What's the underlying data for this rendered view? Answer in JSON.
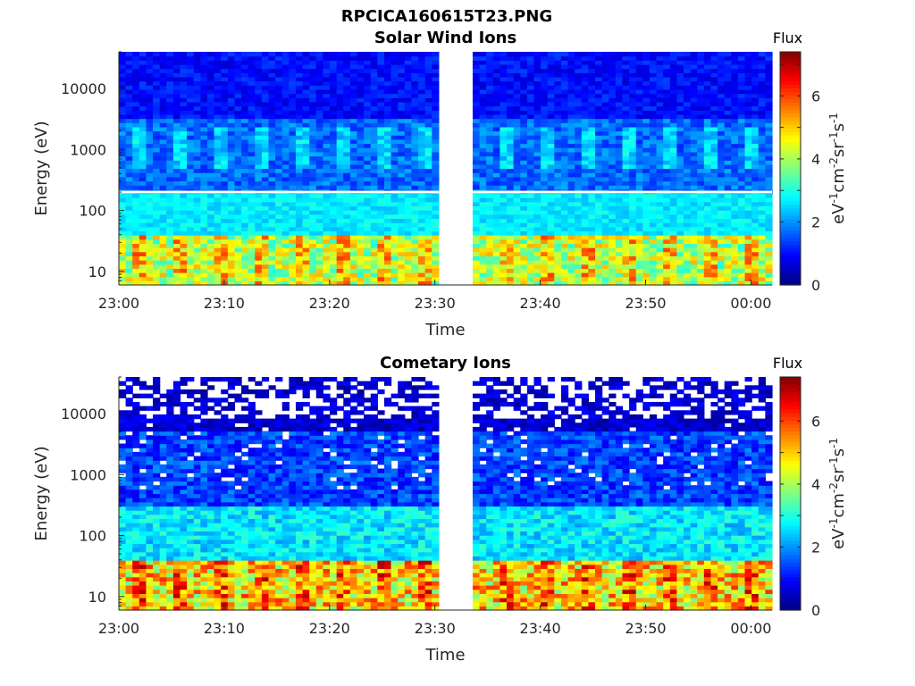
{
  "figure": {
    "title": "RPCICA160615T23.PNG"
  },
  "chart_data": [
    {
      "type": "heatmap",
      "title": "Solar Wind Ions",
      "xlabel": "Time",
      "ylabel": "Energy (eV)",
      "x_ticks": [
        "23:00",
        "23:10",
        "23:20",
        "23:30",
        "23:40",
        "23:50",
        "00:00"
      ],
      "x_range_minutes": [
        0,
        62
      ],
      "data_gap_minutes": [
        30.5,
        33.5
      ],
      "y_scale": "log",
      "y_ticks": [
        "10",
        "100",
        "1000",
        "10000"
      ],
      "y_range": [
        6,
        40000
      ],
      "colorbar": {
        "title": "Flux",
        "label": "eV-1cm-2sr-1s-1",
        "ticks": [
          "0",
          "2",
          "4",
          "6"
        ],
        "range": [
          0,
          7.4
        ]
      },
      "colormap": "jet",
      "masked_energy_row": 200,
      "bands": [
        {
          "energy_range": [
            6,
            40
          ],
          "flux_range": [
            3.0,
            5.2
          ]
        },
        {
          "energy_range": [
            40,
            200
          ],
          "flux_range": [
            2.3,
            3.0
          ]
        },
        {
          "energy_range": [
            200,
            3000
          ],
          "flux_range": [
            1.2,
            2.2
          ]
        },
        {
          "energy_range": [
            3000,
            40000
          ],
          "flux_range": [
            0.6,
            1.4
          ]
        }
      ],
      "grid": false
    },
    {
      "type": "heatmap",
      "title": "Cometary Ions",
      "xlabel": "Time",
      "ylabel": "Energy (eV)",
      "x_ticks": [
        "23:00",
        "23:10",
        "23:20",
        "23:30",
        "23:40",
        "23:50",
        "00:00"
      ],
      "x_range_minutes": [
        0,
        62
      ],
      "data_gap_minutes": [
        30.5,
        33.5
      ],
      "y_scale": "log",
      "y_ticks": [
        "10",
        "100",
        "1000",
        "10000"
      ],
      "y_range": [
        6,
        40000
      ],
      "colorbar": {
        "title": "Flux",
        "label": "eV-1cm-2sr-1s-1",
        "ticks": [
          "0",
          "2",
          "4",
          "6"
        ],
        "range": [
          0,
          7.4
        ]
      },
      "colormap": "jet",
      "bands": [
        {
          "energy_range": [
            6,
            40
          ],
          "flux_range": [
            3.5,
            6.2
          ]
        },
        {
          "energy_range": [
            40,
            300
          ],
          "flux_range": [
            2.0,
            3.2
          ]
        },
        {
          "energy_range": [
            300,
            5000
          ],
          "flux_range": [
            0.8,
            2.0
          ]
        },
        {
          "energy_range": [
            5000,
            40000
          ],
          "flux_range": [
            0.2,
            1.0
          ]
        }
      ],
      "grid": false
    }
  ]
}
